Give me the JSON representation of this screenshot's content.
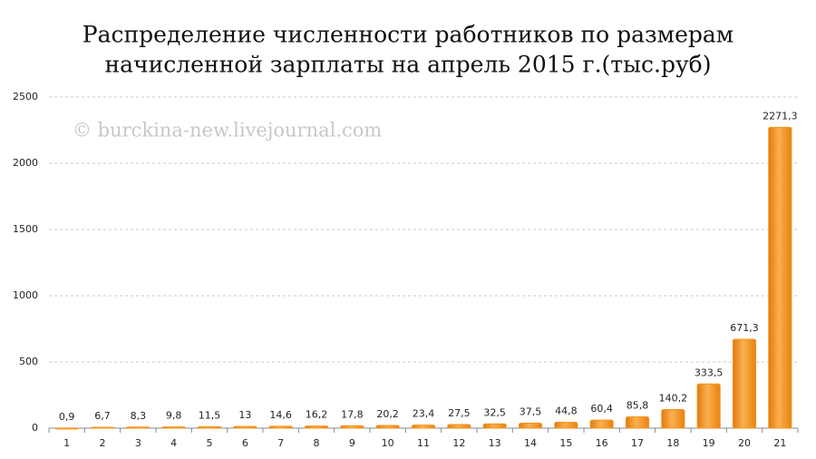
{
  "chart_data": {
    "type": "bar",
    "title": [
      "Распределение численности работников по размерам",
      "начисленной зарплаты на апрель 2015 г.(тыс.руб)"
    ],
    "watermark": "© burckina-new.livejournal.com",
    "categories": [
      "1",
      "2",
      "3",
      "4",
      "5",
      "6",
      "7",
      "8",
      "9",
      "10",
      "11",
      "12",
      "13",
      "14",
      "15",
      "16",
      "17",
      "18",
      "19",
      "20",
      "21"
    ],
    "values": [
      0.9,
      6.7,
      8.3,
      9.8,
      11.5,
      13,
      14.6,
      16.2,
      17.8,
      20.2,
      23.4,
      27.5,
      32.5,
      37.5,
      44.8,
      60.4,
      85.8,
      140.2,
      333.5,
      671.3,
      2271.3
    ],
    "value_labels": [
      "0,9",
      "6,7",
      "8,3",
      "9,8",
      "11,5",
      "13",
      "14,6",
      "16,2",
      "17,8",
      "20,2",
      "23,4",
      "27,5",
      "32,5",
      "37,5",
      "44,8",
      "60,4",
      "85,8",
      "140,2",
      "333,5",
      "671,3",
      "2271,3"
    ],
    "color": "#f7931e",
    "ylim": [
      0,
      2500
    ],
    "yticks": [
      0,
      500,
      1000,
      1500,
      2000,
      2500
    ],
    "grid": true
  }
}
